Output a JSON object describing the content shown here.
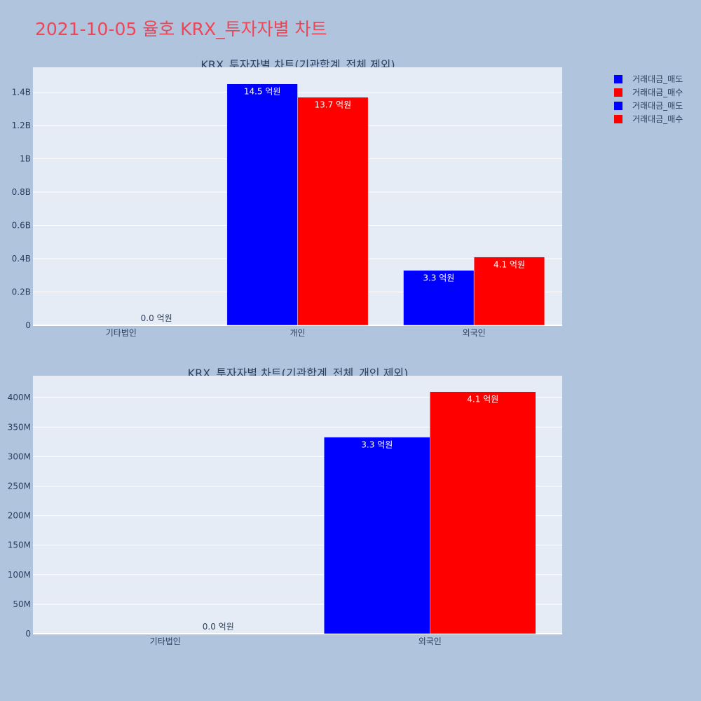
{
  "page_title": "2021-10-05 율호 KRX_투자자별 차트",
  "colors": {
    "background": "#b0c4de",
    "plot_bg": "#e5ecf6",
    "title": "#ef4657",
    "text": "#2a3f5f",
    "sell": "#0000ff",
    "buy": "#ff0000"
  },
  "legend": [
    {
      "label": "거래대금_매도",
      "color": "#0000ff"
    },
    {
      "label": "거래대금_매수",
      "color": "#ff0000"
    },
    {
      "label": "거래대금_매도",
      "color": "#0000ff"
    },
    {
      "label": "거래대금_매수",
      "color": "#ff0000"
    }
  ],
  "chart_data": [
    {
      "type": "bar",
      "title": "KRX_투자자별 차트(기관합계_전체 제외)",
      "categories": [
        "기타법인",
        "개인",
        "외국인"
      ],
      "series": [
        {
          "name": "거래대금_매도",
          "color": "#0000ff",
          "values": [
            0,
            1450000000,
            330000000
          ],
          "labels": [
            "",
            "14.5 억원",
            "3.3 억원"
          ]
        },
        {
          "name": "거래대금_매수",
          "color": "#ff0000",
          "values": [
            0,
            1370000000,
            410000000
          ],
          "labels": [
            "0.0 억원",
            "13.7 억원",
            "4.1 억원"
          ]
        }
      ],
      "ylim": [
        0,
        1550000000
      ],
      "yticks": [
        0,
        200000000,
        400000000,
        600000000,
        800000000,
        1000000000,
        1200000000,
        1400000000
      ],
      "ytick_labels": [
        "0",
        "0.2B",
        "0.4B",
        "0.6B",
        "0.8B",
        "1B",
        "1.2B",
        "1.4B"
      ],
      "grid": true
    },
    {
      "type": "bar",
      "title": "KRX_투자자별 차트(기관합계_전체_개인 제외)",
      "categories": [
        "기타법인",
        "외국인"
      ],
      "series": [
        {
          "name": "거래대금_매도",
          "color": "#0000ff",
          "values": [
            0,
            333000000
          ],
          "labels": [
            "",
            "3.3 억원"
          ]
        },
        {
          "name": "거래대금_매수",
          "color": "#ff0000",
          "values": [
            0,
            410000000
          ],
          "labels": [
            "0.0 억원",
            "4.1 억원"
          ]
        }
      ],
      "ylim": [
        0,
        437000000
      ],
      "yticks": [
        0,
        50000000,
        100000000,
        150000000,
        200000000,
        250000000,
        300000000,
        350000000,
        400000000
      ],
      "ytick_labels": [
        "0",
        "50M",
        "100M",
        "150M",
        "200M",
        "250M",
        "300M",
        "350M",
        "400M"
      ],
      "grid": true
    }
  ]
}
